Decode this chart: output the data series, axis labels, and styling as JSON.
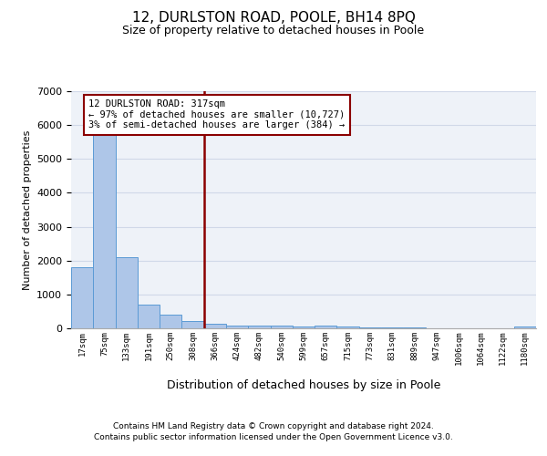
{
  "title": "12, DURLSTON ROAD, POOLE, BH14 8PQ",
  "subtitle": "Size of property relative to detached houses in Poole",
  "xlabel": "Distribution of detached houses by size in Poole",
  "ylabel": "Number of detached properties",
  "footnote1": "Contains HM Land Registry data © Crown copyright and database right 2024.",
  "footnote2": "Contains public sector information licensed under the Open Government Licence v3.0.",
  "bar_labels": [
    "17sqm",
    "75sqm",
    "133sqm",
    "191sqm",
    "250sqm",
    "308sqm",
    "366sqm",
    "424sqm",
    "482sqm",
    "540sqm",
    "599sqm",
    "657sqm",
    "715sqm",
    "773sqm",
    "831sqm",
    "889sqm",
    "947sqm",
    "1006sqm",
    "1064sqm",
    "1122sqm",
    "1180sqm"
  ],
  "bar_values": [
    1800,
    5700,
    2100,
    700,
    400,
    220,
    140,
    90,
    80,
    70,
    60,
    80,
    50,
    30,
    20,
    15,
    10,
    8,
    5,
    5,
    50
  ],
  "bar_color": "#aec6e8",
  "bar_edgecolor": "#5b9bd5",
  "vline_color": "#8b0000",
  "annotation_text": "12 DURLSTON ROAD: 317sqm\n← 97% of detached houses are smaller (10,727)\n3% of semi-detached houses are larger (384) →",
  "annotation_box_color": "#8b0000",
  "ylim": [
    0,
    7000
  ],
  "yticks": [
    0,
    1000,
    2000,
    3000,
    4000,
    5000,
    6000,
    7000
  ],
  "grid_color": "#d0d8e8",
  "bg_color": "#eef2f8",
  "title_fontsize": 11,
  "subtitle_fontsize": 9
}
